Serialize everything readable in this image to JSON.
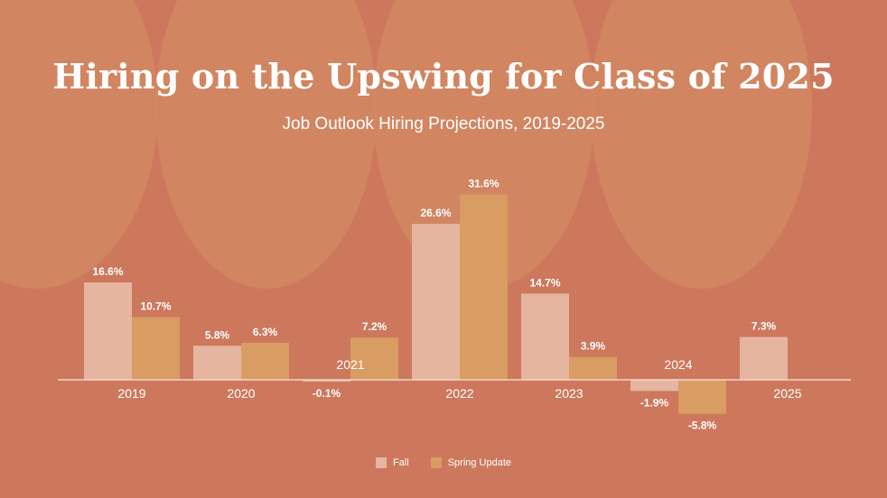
{
  "title": "Hiring on the Upswing for Class of 2025",
  "subtitle": "Job Outlook Hiring Projections, 2019-2025",
  "colors": {
    "background": "#cd785d",
    "fall": "#e6b59f",
    "spring": "#d99c63",
    "text": "#ffffff"
  },
  "chart_data": {
    "type": "bar",
    "title": "Hiring on the Upswing for Class of 2025",
    "subtitle": "Job Outlook Hiring Projections, 2019-2025",
    "categories": [
      "2019",
      "2020",
      "2021",
      "2022",
      "2023",
      "2024",
      "2025"
    ],
    "series": [
      {
        "name": "Fall",
        "values": [
          16.6,
          5.8,
          -0.1,
          26.6,
          14.7,
          -1.9,
          7.3
        ],
        "labels": [
          "16.6%",
          "5.8%",
          "-0.1%",
          "26.6%",
          "14.7%",
          "-1.9%",
          "7.3%"
        ]
      },
      {
        "name": "Spring Update",
        "values": [
          10.7,
          6.3,
          7.2,
          31.6,
          3.9,
          -5.8,
          null
        ],
        "labels": [
          "10.7%",
          "6.3%",
          "7.2%",
          "31.6%",
          "3.9%",
          "-5.8%",
          ""
        ]
      }
    ],
    "ylim": [
      -10,
      35
    ],
    "grid": false,
    "legend": "bottom-center"
  }
}
